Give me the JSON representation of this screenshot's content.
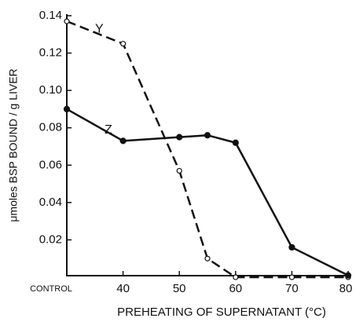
{
  "chart_data": {
    "type": "line",
    "x_label": "PREHEATING OF SUPERNATANT (°C)",
    "y_label": "μmoles BSP BOUND / g LIVER",
    "x": [
      30,
      40,
      50,
      55,
      60,
      70,
      80
    ],
    "xlim": [
      30,
      80
    ],
    "xticks": [
      {
        "value": 30,
        "label": "CONTROL"
      },
      40,
      50,
      60,
      70,
      80
    ],
    "ylim": [
      0,
      0.14
    ],
    "yticks": [
      0.02,
      0.04,
      0.06,
      0.08,
      {
        "value": 0.1,
        "label": "0.10"
      },
      0.12,
      0.14
    ],
    "series": [
      {
        "name": "Y",
        "color": "#111111",
        "style": "dashed",
        "marker": "open",
        "values": [
          0.137,
          0.125,
          0.057,
          0.01,
          0.0,
          0.0,
          0.0
        ]
      },
      {
        "name": "Z",
        "color": "#111111",
        "style": "solid",
        "marker": "filled",
        "values": [
          0.09,
          0.073,
          0.075,
          0.076,
          0.072,
          0.016,
          0.001
        ]
      }
    ]
  }
}
